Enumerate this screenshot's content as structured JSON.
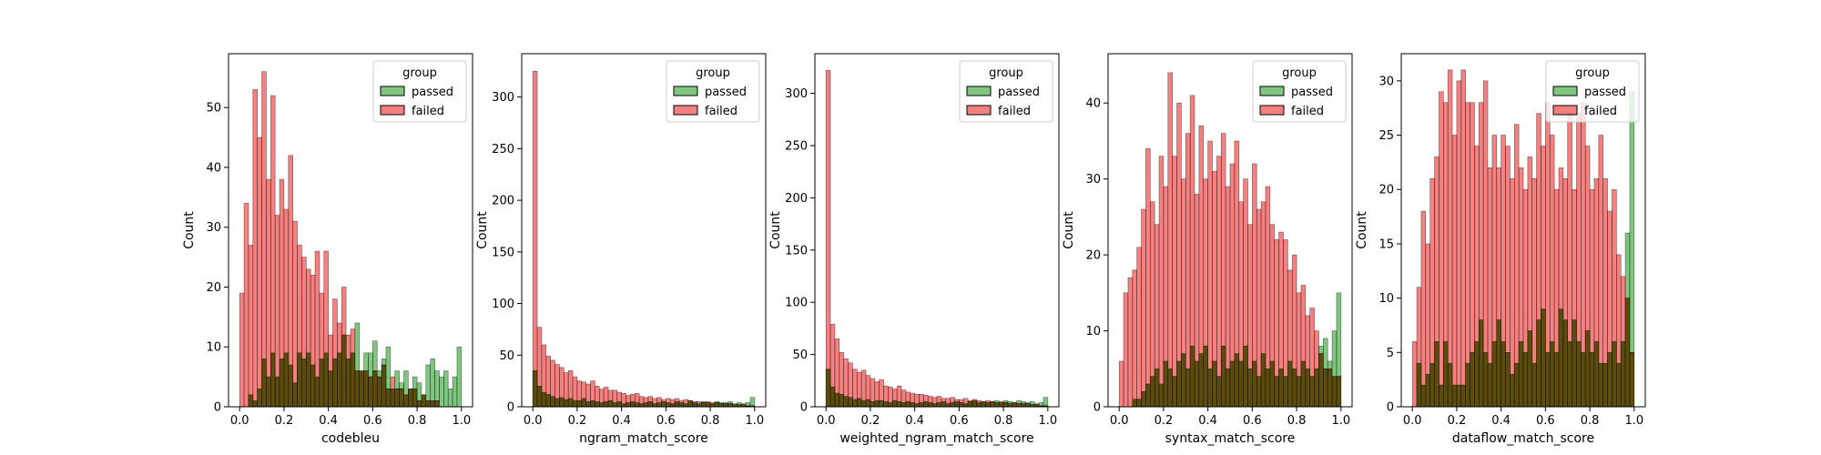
{
  "colors": {
    "passed": "#2ca02c",
    "failed": "#ee2b2b",
    "overlap": "#4b4600",
    "edge": "#000000"
  },
  "chart_data": [
    {
      "type": "histogram",
      "xlabel": "codebleu",
      "ylabel": "Count",
      "xlim": [
        -0.05,
        1.05
      ],
      "ylim": [
        0,
        59
      ],
      "xticks": [
        "0.0",
        "0.2",
        "0.4",
        "0.6",
        "0.8",
        "1.0"
      ],
      "xtick_values": [
        0,
        0.2,
        0.4,
        0.6,
        0.8,
        1.0
      ],
      "yticks": [
        "0",
        "10",
        "20",
        "30",
        "40",
        "50"
      ],
      "ytick_values": [
        0,
        10,
        20,
        30,
        40,
        50
      ],
      "bins": {
        "start": 0.0,
        "width": 0.02
      },
      "legend": {
        "title": "group",
        "placement": "upper right",
        "entries": [
          "passed",
          "failed"
        ]
      },
      "series": [
        {
          "name": "failed",
          "values": [
            19,
            34,
            27,
            53,
            45,
            56,
            38,
            52,
            32,
            38,
            33,
            42,
            31,
            27,
            25,
            23,
            22,
            26,
            19,
            26,
            12,
            18,
            14,
            20,
            12,
            13,
            6,
            6,
            6,
            5,
            6,
            5,
            7,
            3,
            5,
            3,
            3,
            2,
            3,
            3,
            1,
            2,
            1,
            1,
            1,
            0,
            0,
            0,
            0,
            0
          ]
        },
        {
          "name": "passed",
          "values": [
            0,
            0,
            2,
            1,
            3,
            8,
            5,
            9,
            5,
            8,
            9,
            7,
            4,
            9,
            8,
            9,
            7,
            5,
            8,
            9,
            6,
            8,
            9,
            12,
            8,
            9,
            14,
            6,
            9,
            9,
            11,
            6,
            8,
            10,
            3,
            6,
            4,
            6,
            3,
            5,
            4,
            2,
            7,
            8,
            6,
            5,
            6,
            3,
            5,
            10
          ]
        }
      ]
    },
    {
      "type": "histogram",
      "xlabel": "ngram_match_score",
      "ylabel": "Count",
      "xlim": [
        -0.05,
        1.05
      ],
      "ylim": [
        0,
        342
      ],
      "xticks": [
        "0.0",
        "0.2",
        "0.4",
        "0.6",
        "0.8",
        "1.0"
      ],
      "xtick_values": [
        0,
        0.2,
        0.4,
        0.6,
        0.8,
        1.0
      ],
      "yticks": [
        "0",
        "50",
        "100",
        "150",
        "200",
        "250",
        "300"
      ],
      "ytick_values": [
        0,
        50,
        100,
        150,
        200,
        250,
        300
      ],
      "bins": {
        "start": 0.0,
        "width": 0.02
      },
      "legend": {
        "title": "group",
        "placement": "upper right",
        "entries": [
          "passed",
          "failed"
        ]
      },
      "series": [
        {
          "name": "failed",
          "values": [
            325,
            77,
            60,
            49,
            45,
            41,
            38,
            33,
            35,
            29,
            25,
            24,
            22,
            25,
            20,
            17,
            19,
            16,
            16,
            14,
            13,
            11,
            12,
            13,
            10,
            9,
            10,
            8,
            9,
            7,
            8,
            7,
            8,
            6,
            7,
            6,
            5,
            5,
            4,
            5,
            4,
            4,
            3,
            3,
            3,
            2,
            2,
            2,
            1,
            1
          ]
        },
        {
          "name": "passed",
          "values": [
            35,
            20,
            14,
            12,
            10,
            8,
            9,
            7,
            8,
            6,
            6,
            8,
            5,
            6,
            5,
            4,
            5,
            6,
            4,
            5,
            3,
            4,
            5,
            4,
            3,
            4,
            5,
            3,
            4,
            5,
            4,
            3,
            5,
            4,
            3,
            6,
            4,
            3,
            5,
            4,
            3,
            5,
            4,
            4,
            5,
            3,
            4,
            3,
            4,
            9
          ]
        }
      ]
    },
    {
      "type": "histogram",
      "xlabel": "weighted_ngram_match_score",
      "ylabel": "Count",
      "xlim": [
        -0.05,
        1.05
      ],
      "ylim": [
        0,
        338
      ],
      "xticks": [
        "0.0",
        "0.2",
        "0.4",
        "0.6",
        "0.8",
        "1.0"
      ],
      "xtick_values": [
        0,
        0.2,
        0.4,
        0.6,
        0.8,
        1.0
      ],
      "yticks": [
        "0",
        "50",
        "100",
        "150",
        "200",
        "250",
        "300"
      ],
      "ytick_values": [
        0,
        50,
        100,
        150,
        200,
        250,
        300
      ],
      "bins": {
        "start": 0.0,
        "width": 0.02
      },
      "legend": {
        "title": "group",
        "placement": "upper right",
        "entries": [
          "passed",
          "failed"
        ]
      },
      "series": [
        {
          "name": "failed",
          "values": [
            322,
            79,
            65,
            52,
            46,
            42,
            36,
            33,
            35,
            30,
            27,
            24,
            26,
            20,
            19,
            17,
            20,
            16,
            14,
            13,
            12,
            12,
            11,
            10,
            9,
            10,
            8,
            8,
            9,
            7,
            7,
            8,
            6,
            7,
            6,
            5,
            6,
            5,
            4,
            5,
            4,
            3,
            4,
            3,
            3,
            3,
            2,
            2,
            1,
            1
          ]
        },
        {
          "name": "passed",
          "values": [
            36,
            19,
            13,
            12,
            10,
            9,
            7,
            8,
            6,
            7,
            5,
            6,
            6,
            5,
            4,
            6,
            5,
            4,
            5,
            4,
            3,
            4,
            5,
            4,
            3,
            4,
            5,
            3,
            4,
            5,
            4,
            3,
            5,
            6,
            4,
            5,
            4,
            5,
            6,
            4,
            6,
            5,
            4,
            6,
            5,
            4,
            5,
            3,
            4,
            9
          ]
        }
      ]
    },
    {
      "type": "histogram",
      "xlabel": "syntax_match_score",
      "ylabel": "Count",
      "xlim": [
        -0.05,
        1.05
      ],
      "ylim": [
        0,
        46.5
      ],
      "xticks": [
        "0.0",
        "0.2",
        "0.4",
        "0.6",
        "0.8",
        "1.0"
      ],
      "xtick_values": [
        0,
        0.2,
        0.4,
        0.6,
        0.8,
        1.0
      ],
      "yticks": [
        "0",
        "10",
        "20",
        "30",
        "40"
      ],
      "ytick_values": [
        0,
        10,
        20,
        30,
        40
      ],
      "bins": {
        "start": 0.0,
        "width": 0.02
      },
      "legend": {
        "title": "group",
        "placement": "upper right",
        "entries": [
          "passed",
          "failed"
        ]
      },
      "series": [
        {
          "name": "failed",
          "values": [
            6,
            15,
            17,
            18,
            21,
            26,
            34,
            27,
            24,
            33,
            29,
            44,
            33,
            40,
            30,
            36,
            41,
            28,
            37,
            30,
            35,
            31,
            33,
            36,
            29,
            32,
            35,
            27,
            30,
            24,
            32,
            26,
            27,
            29,
            24,
            22,
            23,
            22,
            18,
            20,
            15,
            16,
            12,
            13,
            10,
            7,
            5,
            5,
            4,
            4
          ]
        },
        {
          "name": "passed",
          "values": [
            0,
            0,
            0,
            1,
            1,
            2,
            3,
            4,
            5,
            3,
            6,
            5,
            4,
            6,
            7,
            5,
            8,
            6,
            7,
            8,
            5,
            6,
            4,
            8,
            5,
            6,
            7,
            6,
            8,
            5,
            6,
            4,
            7,
            5,
            6,
            4,
            5,
            4,
            6,
            5,
            4,
            6,
            5,
            4,
            5,
            8,
            9,
            6,
            10,
            15
          ]
        }
      ]
    },
    {
      "type": "histogram",
      "xlabel": "dataflow_match_score",
      "ylabel": "Count",
      "xlim": [
        -0.05,
        1.05
      ],
      "ylim": [
        0,
        32.5
      ],
      "xticks": [
        "0.0",
        "0.2",
        "0.4",
        "0.6",
        "0.8",
        "1.0"
      ],
      "xtick_values": [
        0,
        0.2,
        0.4,
        0.6,
        0.8,
        1.0
      ],
      "yticks": [
        "0",
        "5",
        "10",
        "15",
        "20",
        "25",
        "30"
      ],
      "ytick_values": [
        0,
        5,
        10,
        15,
        20,
        25,
        30
      ],
      "bins": {
        "start": 0.0,
        "width": 0.02
      },
      "legend": {
        "title": "group",
        "placement": "upper right",
        "entries": [
          "passed",
          "failed"
        ]
      },
      "series": [
        {
          "name": "failed",
          "values": [
            6,
            11,
            18,
            15,
            21,
            23,
            29,
            28,
            31,
            25,
            30,
            31,
            28,
            28,
            24,
            28,
            30,
            22,
            25,
            22,
            25,
            24,
            21,
            26,
            22,
            20,
            23,
            21,
            27,
            24,
            28,
            25,
            20,
            22,
            21,
            27,
            20,
            27,
            28,
            24,
            20,
            21,
            25,
            21,
            18,
            20,
            14,
            12,
            10,
            5
          ]
        },
        {
          "name": "passed",
          "values": [
            0,
            4,
            2,
            3,
            4,
            6,
            2,
            6,
            4,
            2,
            2,
            2,
            4,
            5,
            6,
            8,
            5,
            4,
            6,
            8,
            6,
            5,
            3,
            4,
            6,
            5,
            7,
            4,
            8,
            9,
            5,
            6,
            5,
            9,
            8,
            6,
            8,
            6,
            5,
            7,
            5,
            6,
            4,
            4,
            5,
            6,
            4,
            6,
            16,
            29
          ]
        }
      ]
    }
  ]
}
